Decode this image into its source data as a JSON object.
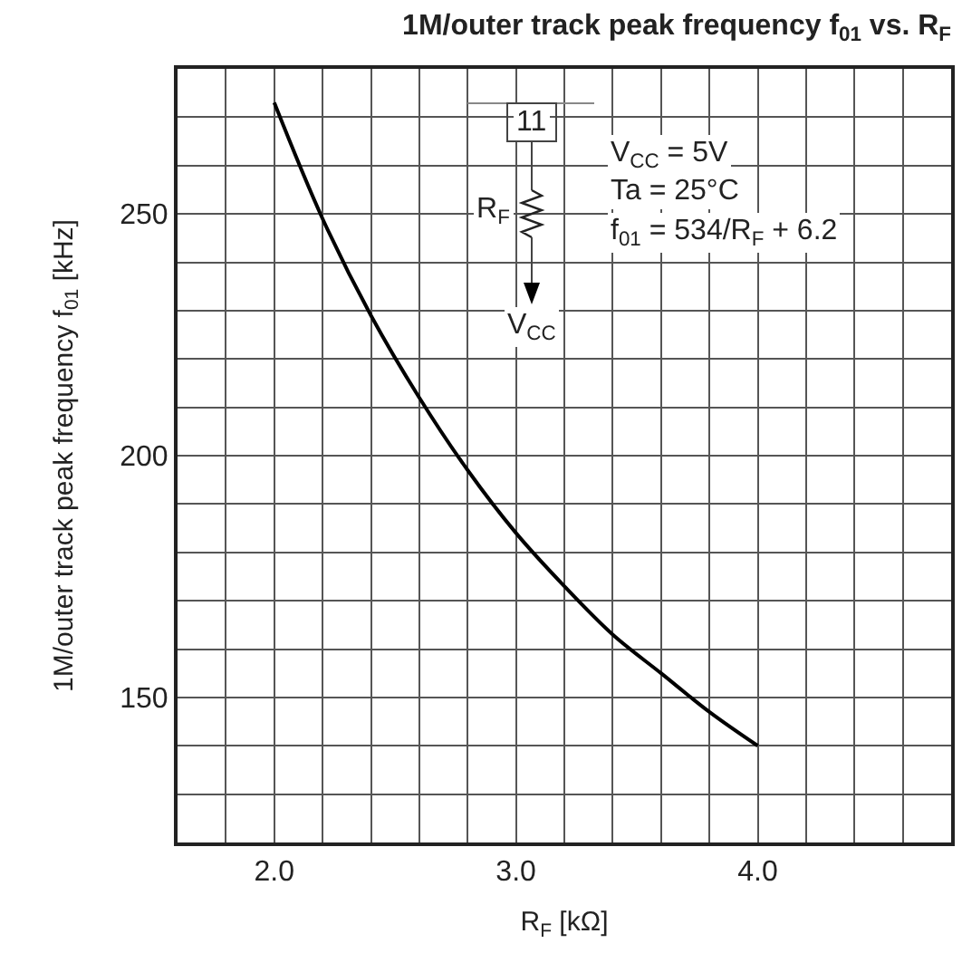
{
  "chart_data": {
    "type": "line",
    "title": "1M/outer track peak frequency f$_{01}$ vs. R$_{F}$",
    "xlabel": "R$_{F}$ [kΩ]",
    "ylabel": "1M/outer track peak frequency f$_{01}$ [kHz]",
    "annotations": [
      "11",
      "R$_{F}$",
      "V$_{CC}$",
      "V$_{CC}$ = 5V",
      "Ta = 25°C",
      "f$_{01}$ = 534/R$_{F}$ + 6.2"
    ],
    "x": [
      2.0,
      2.2,
      2.4,
      2.6,
      2.8,
      3.0,
      3.2,
      3.4,
      3.6,
      3.8,
      4.0
    ],
    "series": [
      {
        "color": "#000000",
        "values": [
          273,
          249,
          229,
          212,
          197,
          184,
          173,
          163,
          155,
          147,
          140
        ]
      }
    ],
    "xlim": [
      1.6,
      4.8
    ],
    "xticks": [
      {
        "value": 1.8,
        "label": null
      },
      {
        "value": 2,
        "label": "2.0"
      },
      {
        "value": 2.2,
        "label": null
      },
      {
        "value": 2.4,
        "label": null
      },
      {
        "value": 2.6,
        "label": null
      },
      {
        "value": 2.8,
        "label": null
      },
      {
        "value": 3,
        "label": "3.0"
      },
      {
        "value": 3.2,
        "label": null
      },
      {
        "value": 3.4,
        "label": null
      },
      {
        "value": 3.6,
        "label": null
      },
      {
        "value": 3.8,
        "label": null
      },
      {
        "value": 4,
        "label": "4.0"
      },
      {
        "value": 4.2,
        "label": null
      },
      {
        "value": 4.4,
        "label": null
      },
      {
        "value": 4.6,
        "label": null
      }
    ],
    "ylim": [
      120,
      280
    ],
    "yticks": [
      {
        "value": 130,
        "label": null
      },
      {
        "value": 140,
        "label": null
      },
      150,
      {
        "value": 160,
        "label": null
      },
      {
        "value": 170,
        "label": null
      },
      {
        "value": 180,
        "label": null
      },
      {
        "value": 190,
        "label": null
      },
      200,
      {
        "value": 210,
        "label": null
      },
      {
        "value": 220,
        "label": null
      },
      {
        "value": 230,
        "label": null
      },
      {
        "value": 240,
        "label": null
      },
      250,
      {
        "value": 260,
        "label": null
      },
      {
        "value": 270,
        "label": null
      }
    ],
    "grid": true,
    "marker": "none",
    "line_style": "solid"
  }
}
